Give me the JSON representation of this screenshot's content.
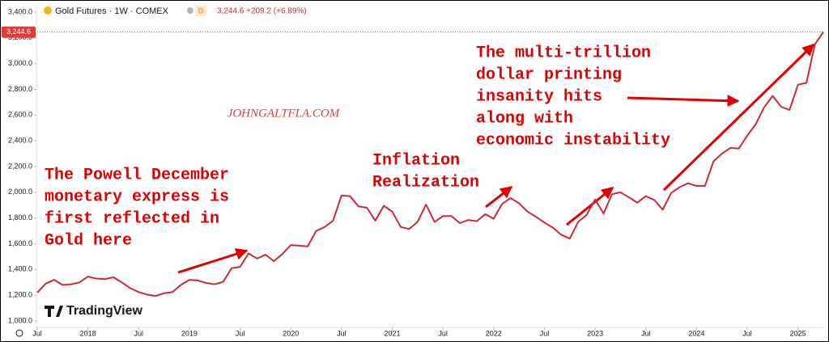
{
  "chart_data": {
    "type": "line",
    "title": "Gold Futures · 1W · COMEX",
    "badge": "D",
    "quote": "3,244.6 +209.2 (+6.89%)",
    "price_label": "3,244.6",
    "watermark": "JOHNGALTFLA.COM",
    "logo": "TradingView",
    "annotations": [
      {
        "lines": [
          "The Powell December",
          "monetary express is",
          "first reflected in",
          "Gold here"
        ]
      },
      {
        "lines": [
          "Inflation",
          "Realization"
        ]
      },
      {
        "lines": [
          "The multi-trillion",
          "dollar printing",
          "insanity hits",
          "along with",
          "economic instability"
        ]
      }
    ],
    "x": [
      "2017-07",
      "2017-08",
      "2017-09",
      "2017-10",
      "2017-11",
      "2017-12",
      "2018-01",
      "2018-02",
      "2018-03",
      "2018-04",
      "2018-05",
      "2018-06",
      "2018-07",
      "2018-08",
      "2018-09",
      "2018-10",
      "2018-11",
      "2018-12",
      "2019-01",
      "2019-02",
      "2019-03",
      "2019-04",
      "2019-05",
      "2019-06",
      "2019-07",
      "2019-08",
      "2019-09",
      "2019-10",
      "2019-11",
      "2019-12",
      "2020-01",
      "2020-02",
      "2020-03",
      "2020-04",
      "2020-05",
      "2020-06",
      "2020-07",
      "2020-08",
      "2020-09",
      "2020-10",
      "2020-11",
      "2020-12",
      "2021-01",
      "2021-02",
      "2021-03",
      "2021-04",
      "2021-05",
      "2021-06",
      "2021-07",
      "2021-08",
      "2021-09",
      "2021-10",
      "2021-11",
      "2021-12",
      "2022-01",
      "2022-02",
      "2022-03",
      "2022-04",
      "2022-05",
      "2022-06",
      "2022-07",
      "2022-08",
      "2022-09",
      "2022-10",
      "2022-11",
      "2022-12",
      "2023-01",
      "2023-02",
      "2023-03",
      "2023-04",
      "2023-05",
      "2023-06",
      "2023-07",
      "2023-08",
      "2023-09",
      "2023-10",
      "2023-11",
      "2023-12",
      "2024-01",
      "2024-02",
      "2024-03",
      "2024-04",
      "2024-05",
      "2024-06",
      "2024-07",
      "2024-08",
      "2024-09",
      "2024-10",
      "2024-11",
      "2024-12",
      "2025-01",
      "2025-02",
      "2025-03",
      "2025-04"
    ],
    "series": [
      {
        "name": "Gold Futures",
        "color": "#cc2b36",
        "values": [
          1220,
          1290,
          1320,
          1280,
          1285,
          1300,
          1345,
          1330,
          1325,
          1340,
          1300,
          1255,
          1225,
          1205,
          1195,
          1215,
          1225,
          1280,
          1320,
          1315,
          1295,
          1285,
          1305,
          1410,
          1420,
          1525,
          1485,
          1515,
          1465,
          1520,
          1590,
          1585,
          1580,
          1700,
          1730,
          1780,
          1975,
          1970,
          1890,
          1880,
          1780,
          1895,
          1850,
          1730,
          1715,
          1770,
          1905,
          1770,
          1815,
          1815,
          1760,
          1785,
          1775,
          1830,
          1795,
          1910,
          1955,
          1915,
          1850,
          1810,
          1765,
          1725,
          1670,
          1640,
          1770,
          1825,
          1945,
          1835,
          1985,
          2000,
          1960,
          1920,
          1970,
          1940,
          1865,
          1995,
          2040,
          2070,
          2050,
          2050,
          2240,
          2300,
          2345,
          2340,
          2440,
          2530,
          2660,
          2750,
          2665,
          2640,
          2835,
          2850,
          3150,
          3244.6
        ]
      }
    ],
    "xlim": [
      "2017-07",
      "2025-04"
    ],
    "xticks": [
      {
        "value": "2017-07",
        "label": "Jul"
      },
      {
        "value": "2018-01",
        "label": "2018"
      },
      {
        "value": "2018-07",
        "label": "Jul"
      },
      {
        "value": "2019-01",
        "label": "2019"
      },
      {
        "value": "2019-07",
        "label": "Jul"
      },
      {
        "value": "2020-01",
        "label": "2020"
      },
      {
        "value": "2020-07",
        "label": "Jul"
      },
      {
        "value": "2021-01",
        "label": "2021"
      },
      {
        "value": "2021-07",
        "label": "Jul"
      },
      {
        "value": "2022-01",
        "label": "2022"
      },
      {
        "value": "2022-07",
        "label": "Jul"
      },
      {
        "value": "2023-01",
        "label": "2023"
      },
      {
        "value": "2023-07",
        "label": "Jul"
      },
      {
        "value": "2024-01",
        "label": "2024"
      },
      {
        "value": "2024-07",
        "label": "Jul"
      },
      {
        "value": "2025-01",
        "label": "2025"
      }
    ],
    "ylim": [
      1000,
      3400
    ],
    "yticks": [
      {
        "value": 1000,
        "label": "1,000.0"
      },
      {
        "value": 1200,
        "label": "1,200.0"
      },
      {
        "value": 1400,
        "label": "1,400.0"
      },
      {
        "value": 1600,
        "label": "1,600.0"
      },
      {
        "value": 1800,
        "label": "1,800.0"
      },
      {
        "value": 2000,
        "label": "2,000.0"
      },
      {
        "value": 2200,
        "label": "2,200.0"
      },
      {
        "value": 2400,
        "label": "2,400.0"
      },
      {
        "value": 2600,
        "label": "2,600.0"
      },
      {
        "value": 2800,
        "label": "2,800.0"
      },
      {
        "value": 3000,
        "label": "3,000.0"
      },
      {
        "value": 3200,
        "label": "3,200.0"
      },
      {
        "value": 3400,
        "label": "3,400.0"
      }
    ],
    "grid": false
  }
}
